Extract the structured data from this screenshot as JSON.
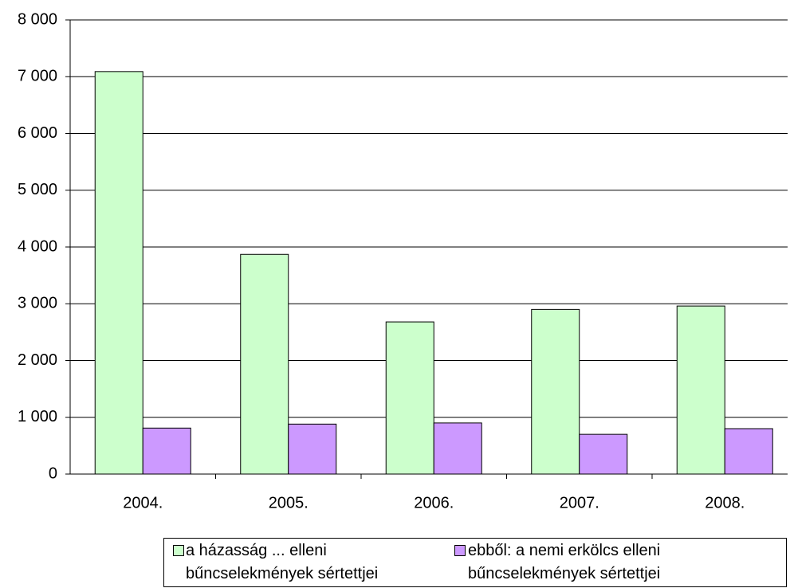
{
  "chart_data": {
    "type": "bar",
    "categories": [
      "2004.",
      "2005.",
      "2006.",
      "2007.",
      "2008."
    ],
    "series": [
      {
        "name": "a házasság ... elleni bűncselekmények sértettjei",
        "color": "#ccffcc",
        "values": [
          7090,
          3870,
          2680,
          2900,
          2960
        ]
      },
      {
        "name": "ebből: a nemi erkölcs elleni bűncselekmények sértettjei",
        "color": "#cc99ff",
        "values": [
          810,
          880,
          900,
          700,
          800
        ]
      }
    ],
    "ylim": [
      0,
      8000
    ],
    "yticks": [
      0,
      {
        "value": 1000,
        "label": "1 000"
      },
      {
        "value": 2000,
        "label": "2 000"
      },
      {
        "value": 3000,
        "label": "3 000"
      },
      {
        "value": 4000,
        "label": "4 000"
      },
      {
        "value": 5000,
        "label": "5 000"
      },
      {
        "value": 6000,
        "label": "6 000"
      },
      {
        "value": 7000,
        "label": "7 000"
      },
      {
        "value": 8000,
        "label": "8 000"
      }
    ],
    "grid": true,
    "legend": "bottom"
  }
}
